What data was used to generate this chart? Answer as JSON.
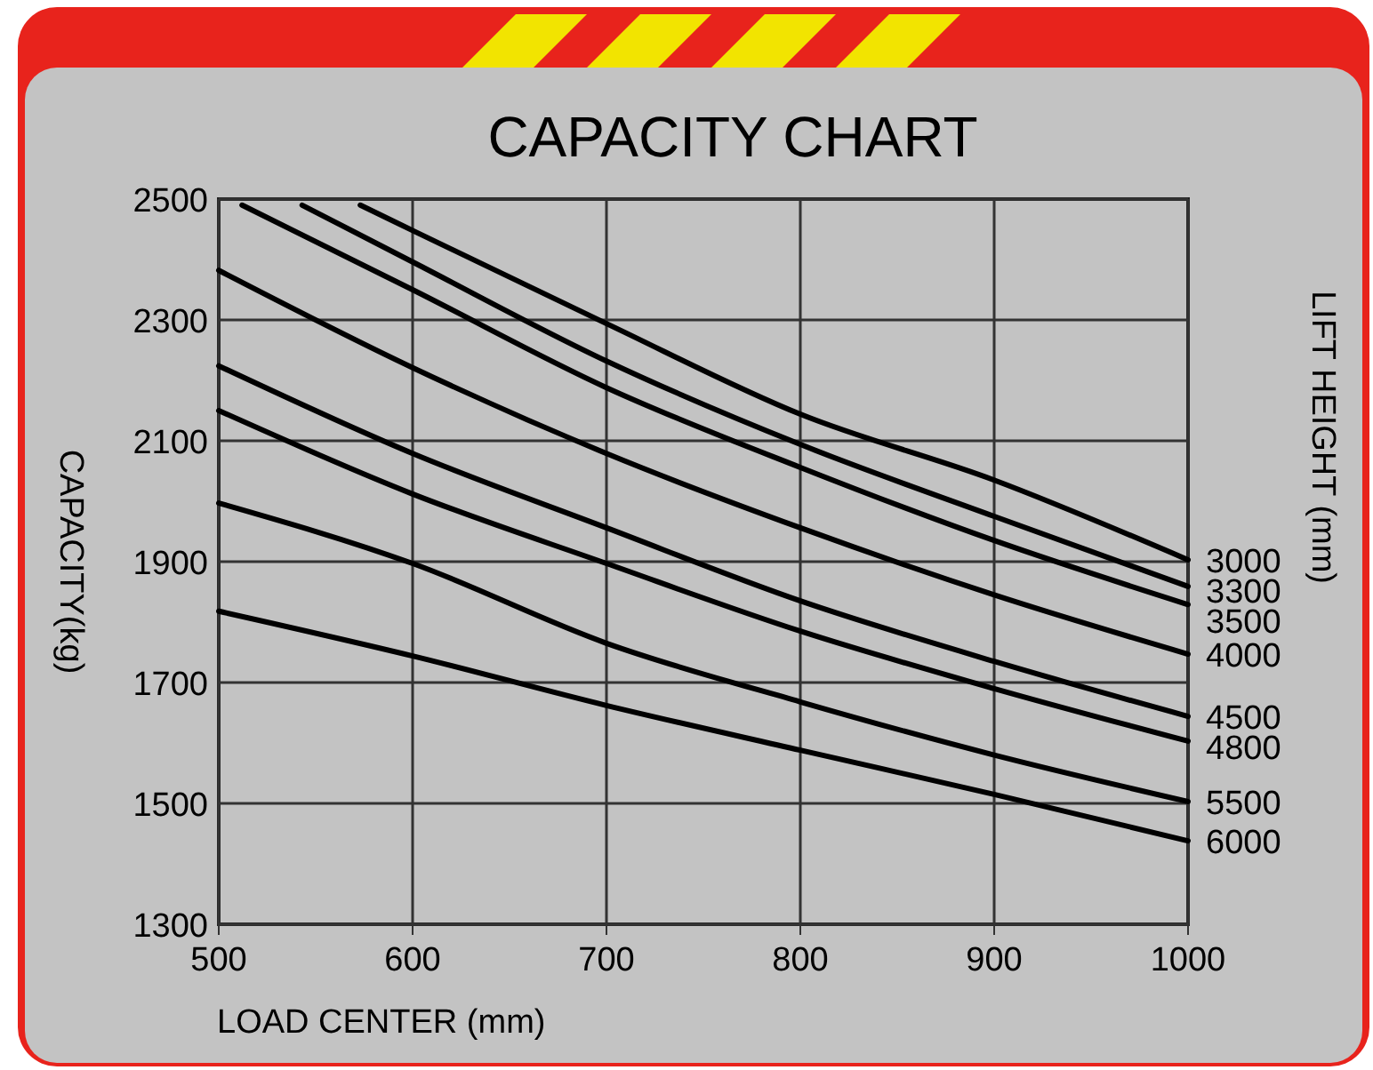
{
  "chart_data": {
    "type": "line",
    "title": "CAPACITY CHART",
    "xlabel": "LOAD CENTER (mm)",
    "ylabel": "CAPACITY(kg)",
    "legend_title": "LIFT HEIGHT (mm)",
    "xlim": [
      500,
      1000
    ],
    "ylim": [
      1300,
      2500
    ],
    "xticks": [
      500,
      600,
      700,
      800,
      900,
      1000
    ],
    "yticks": [
      1300,
      1500,
      1700,
      1900,
      2100,
      2300,
      2500
    ],
    "grid": true,
    "legend": false,
    "marker": "none",
    "line_style": "solid",
    "series": [
      {
        "name": "3000",
        "color": "#000000",
        "x": [
          573,
          600,
          700,
          800,
          900,
          1000
        ],
        "values": [
          2490,
          2448,
          2294,
          2144,
          2035,
          1903
        ]
      },
      {
        "name": "3300",
        "color": "#000000",
        "x": [
          543,
          600,
          700,
          800,
          900,
          1000
        ],
        "values": [
          2490,
          2396,
          2232,
          2094,
          1975,
          1859
        ]
      },
      {
        "name": "3500",
        "color": "#000000",
        "x": [
          512,
          600,
          700,
          800,
          900,
          1000
        ],
        "values": [
          2490,
          2350,
          2188,
          2056,
          1935,
          1829
        ]
      },
      {
        "name": "4000",
        "color": "#000000",
        "x": [
          500,
          600,
          700,
          800,
          900,
          1000
        ],
        "values": [
          2382,
          2221,
          2079,
          1956,
          1845,
          1747
        ]
      },
      {
        "name": "4500",
        "color": "#000000",
        "x": [
          500,
          600,
          700,
          800,
          900,
          1000
        ],
        "values": [
          2224,
          2079,
          1956,
          1835,
          1735,
          1644
        ]
      },
      {
        "name": "4800",
        "color": "#000000",
        "x": [
          500,
          600,
          700,
          800,
          900,
          1000
        ],
        "values": [
          2150,
          2012,
          1897,
          1785,
          1690,
          1603
        ]
      },
      {
        "name": "5500",
        "color": "#000000",
        "x": [
          500,
          600,
          700,
          800,
          900,
          1000
        ],
        "values": [
          1997,
          1897,
          1765,
          1668,
          1580,
          1503
        ]
      },
      {
        "name": "6000",
        "color": "#000000",
        "x": [
          500,
          600,
          700,
          800,
          900,
          1000
        ],
        "values": [
          1818,
          1744,
          1662,
          1588,
          1515,
          1438
        ]
      }
    ]
  }
}
